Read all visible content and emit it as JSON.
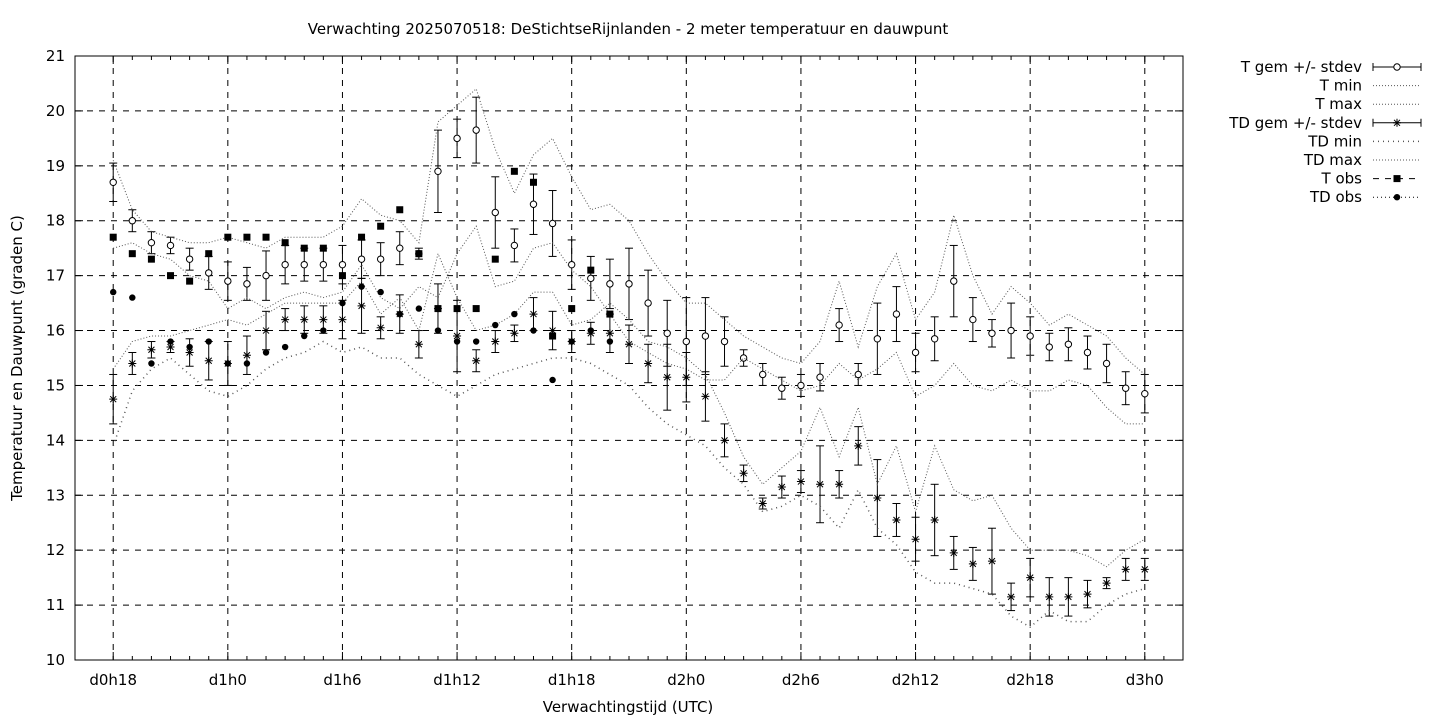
{
  "chart_data": {
    "type": "line",
    "title": "Verwachting 2025070518: DeStichtseRijnlanden - 2 meter temperatuur en dauwpunt",
    "xlabel": "Verwachtingstijd (UTC)",
    "ylabel": "Temperatuur en Dauwpunt (graden C)",
    "ylim": [
      10,
      21
    ],
    "xlim": [
      -2,
      56
    ],
    "grid": true,
    "legend_position": "outside-right",
    "y_ticks": [
      10,
      11,
      12,
      13,
      14,
      15,
      16,
      17,
      18,
      19,
      20,
      21
    ],
    "x_ticks": [
      {
        "x": 0,
        "label": "d0h18"
      },
      {
        "x": 6,
        "label": "d1h0"
      },
      {
        "x": 12,
        "label": "d1h6"
      },
      {
        "x": 18,
        "label": "d1h12"
      },
      {
        "x": 24,
        "label": "d1h18"
      },
      {
        "x": 30,
        "label": "d2h0"
      },
      {
        "x": 36,
        "label": "d2h6"
      },
      {
        "x": 42,
        "label": "d2h12"
      },
      {
        "x": 48,
        "label": "d2h18"
      },
      {
        "x": 54,
        "label": "d3h0"
      }
    ],
    "x": [
      0,
      1,
      2,
      3,
      4,
      5,
      6,
      7,
      8,
      9,
      10,
      11,
      12,
      13,
      14,
      15,
      16,
      17,
      18,
      19,
      20,
      21,
      22,
      23,
      24,
      25,
      26,
      27,
      28,
      29,
      30,
      31,
      32,
      33,
      34,
      35,
      36,
      37,
      38,
      39,
      40,
      41,
      42,
      43,
      44,
      45,
      46,
      47,
      48,
      49,
      50,
      51,
      52,
      53,
      54
    ],
    "series": [
      {
        "name": "T gem +/- stdev",
        "kind": "errorbar-open-circle",
        "values": [
          18.7,
          18.0,
          17.6,
          17.55,
          17.3,
          17.05,
          16.9,
          16.85,
          17.0,
          17.2,
          17.2,
          17.2,
          17.2,
          17.3,
          17.3,
          17.5,
          17.4,
          18.9,
          19.5,
          19.65,
          18.15,
          17.55,
          18.3,
          17.95,
          17.2,
          16.95,
          16.85,
          16.85,
          16.5,
          15.95,
          15.8,
          15.9,
          15.8,
          15.5,
          15.2,
          14.95,
          15.0,
          15.15,
          16.1,
          15.2,
          15.85,
          16.3,
          15.6,
          15.85,
          16.9,
          16.2,
          15.95,
          16.0,
          15.9,
          15.7,
          15.75,
          15.6,
          15.4,
          14.95,
          14.85
        ],
        "errors": [
          0.35,
          0.2,
          0.2,
          0.15,
          0.2,
          0.3,
          0.35,
          0.3,
          0.45,
          0.35,
          0.3,
          0.3,
          0.35,
          0.35,
          0.3,
          0.3,
          0.1,
          0.75,
          0.35,
          0.6,
          0.65,
          0.3,
          0.55,
          0.6,
          0.45,
          0.4,
          0.45,
          0.65,
          0.6,
          0.6,
          0.8,
          0.7,
          0.45,
          0.15,
          0.2,
          0.2,
          0.2,
          0.25,
          0.3,
          0.2,
          0.65,
          0.5,
          0.35,
          0.4,
          0.65,
          0.4,
          0.25,
          0.5,
          0.35,
          0.25,
          0.3,
          0.3,
          0.35,
          0.3,
          0.35
        ]
      },
      {
        "name": "T min",
        "kind": "dotted-line",
        "values": [
          17.5,
          17.6,
          17.4,
          17.3,
          17.0,
          16.9,
          16.4,
          16.6,
          16.4,
          16.6,
          16.7,
          16.6,
          16.7,
          17.2,
          16.6,
          16.4,
          16.8,
          16.6,
          17.4,
          17.9,
          16.8,
          16.9,
          17.5,
          17.6,
          17.1,
          16.8,
          16.3,
          15.8,
          15.6,
          15.4,
          15.3,
          15.1,
          15.1,
          15.5,
          15.3,
          15.1,
          14.9,
          15.0,
          15.4,
          15.1,
          15.3,
          15.6,
          14.8,
          15.0,
          15.4,
          15.0,
          14.9,
          15.1,
          14.9,
          14.9,
          15.1,
          15.0,
          14.6,
          14.3,
          14.3
        ]
      },
      {
        "name": "T max",
        "kind": "dotted-line",
        "values": [
          19.1,
          18.2,
          17.8,
          17.7,
          17.6,
          17.6,
          17.7,
          17.6,
          17.5,
          17.7,
          17.7,
          17.7,
          17.9,
          18.4,
          18.1,
          18.0,
          17.6,
          19.8,
          20.1,
          20.4,
          19.3,
          18.5,
          19.2,
          19.5,
          18.8,
          18.2,
          18.3,
          18.0,
          17.4,
          16.9,
          16.5,
          16.5,
          16.2,
          15.9,
          15.7,
          15.5,
          15.4,
          15.8,
          16.9,
          15.7,
          16.8,
          17.4,
          16.2,
          16.7,
          18.1,
          17.0,
          16.3,
          16.8,
          16.5,
          16.1,
          16.3,
          16.1,
          15.9,
          15.5,
          15.2
        ]
      },
      {
        "name": "TD gem +/- stdev",
        "kind": "errorbar-star",
        "values": [
          14.75,
          15.4,
          15.65,
          15.7,
          15.6,
          15.45,
          15.4,
          15.55,
          16.0,
          16.2,
          16.2,
          16.2,
          16.2,
          16.45,
          16.05,
          16.3,
          15.75,
          16.4,
          15.9,
          15.45,
          15.8,
          15.95,
          16.3,
          16.0,
          15.8,
          15.95,
          15.95,
          15.75,
          15.4,
          15.15,
          15.15,
          14.8,
          14.0,
          13.4,
          12.85,
          13.15,
          13.25,
          13.2,
          13.2,
          13.9,
          12.95,
          12.55,
          12.2,
          12.55,
          11.95,
          11.75,
          11.8,
          11.15,
          11.5,
          11.15,
          11.15,
          11.2,
          11.4,
          11.65,
          11.65
        ],
        "errors": [
          0.45,
          0.2,
          0.15,
          0.1,
          0.25,
          0.35,
          0.4,
          0.35,
          0.35,
          0.2,
          0.25,
          0.25,
          0.35,
          0.5,
          0.2,
          0.35,
          0.25,
          0.45,
          0.65,
          0.2,
          0.2,
          0.15,
          0.3,
          0.35,
          0.2,
          0.2,
          0.35,
          0.35,
          0.35,
          0.6,
          0.45,
          0.45,
          0.3,
          0.15,
          0.1,
          0.2,
          0.2,
          0.7,
          0.25,
          0.35,
          0.7,
          0.3,
          0.4,
          0.65,
          0.3,
          0.3,
          0.6,
          0.25,
          0.35,
          0.35,
          0.35,
          0.25,
          0.1,
          0.2,
          0.2
        ]
      },
      {
        "name": "TD min",
        "kind": "sparse-dotted-line",
        "values": [
          13.9,
          14.9,
          15.3,
          15.5,
          15.2,
          14.9,
          14.8,
          15.0,
          15.3,
          15.5,
          15.6,
          15.8,
          15.6,
          15.7,
          15.5,
          15.5,
          15.2,
          15.0,
          14.8,
          15.0,
          15.2,
          15.3,
          15.4,
          15.5,
          15.5,
          15.4,
          15.2,
          15.0,
          14.6,
          14.3,
          14.1,
          13.9,
          13.5,
          13.2,
          12.7,
          12.8,
          13.0,
          12.8,
          12.4,
          13.1,
          12.4,
          12.1,
          11.6,
          11.4,
          11.4,
          11.3,
          11.2,
          10.8,
          10.6,
          10.9,
          10.7,
          10.7,
          11.0,
          11.2,
          11.3
        ]
      },
      {
        "name": "TD max",
        "kind": "dotted-line",
        "values": [
          15.3,
          15.8,
          15.9,
          15.9,
          16.0,
          16.1,
          16.2,
          16.1,
          16.3,
          16.5,
          16.5,
          16.5,
          16.5,
          16.9,
          16.3,
          16.6,
          16.0,
          17.4,
          16.6,
          16.0,
          16.1,
          16.3,
          16.7,
          16.7,
          16.1,
          16.2,
          16.5,
          16.2,
          15.8,
          15.7,
          15.5,
          15.2,
          14.5,
          13.7,
          13.2,
          13.5,
          13.8,
          14.6,
          13.7,
          14.6,
          13.2,
          13.9,
          12.7,
          13.9,
          13.1,
          12.9,
          13.0,
          12.4,
          12.0,
          12.0,
          12.0,
          11.9,
          11.7,
          12.0,
          12.2
        ]
      },
      {
        "name": "T obs",
        "kind": "filled-square",
        "x": [
          0,
          1,
          2,
          3,
          4,
          5,
          6,
          7,
          8,
          9,
          10,
          11,
          12,
          13,
          14,
          15,
          16,
          17,
          18,
          19,
          20,
          21,
          22,
          23,
          24,
          25,
          26
        ],
        "values": [
          17.7,
          17.4,
          17.3,
          17.0,
          16.9,
          17.4,
          17.7,
          17.7,
          17.7,
          17.6,
          17.5,
          17.5,
          17.0,
          17.7,
          17.9,
          18.2,
          17.4,
          16.4,
          16.4,
          16.4,
          17.3,
          18.9,
          18.7,
          15.9,
          16.4,
          17.1,
          16.3
        ]
      },
      {
        "name": "TD obs",
        "kind": "filled-circle",
        "x": [
          0,
          1,
          2,
          3,
          4,
          5,
          6,
          7,
          8,
          9,
          10,
          11,
          12,
          13,
          14,
          15,
          16,
          17,
          18,
          19,
          20,
          21,
          22,
          23,
          24,
          25,
          26
        ],
        "values": [
          16.7,
          16.6,
          15.4,
          15.8,
          15.7,
          15.8,
          15.4,
          15.4,
          15.6,
          15.7,
          15.9,
          16.0,
          16.5,
          16.8,
          16.7,
          16.3,
          16.4,
          16.0,
          15.8,
          15.8,
          16.1,
          16.3,
          16.0,
          15.1,
          15.8,
          16.0,
          15.8
        ]
      }
    ]
  }
}
